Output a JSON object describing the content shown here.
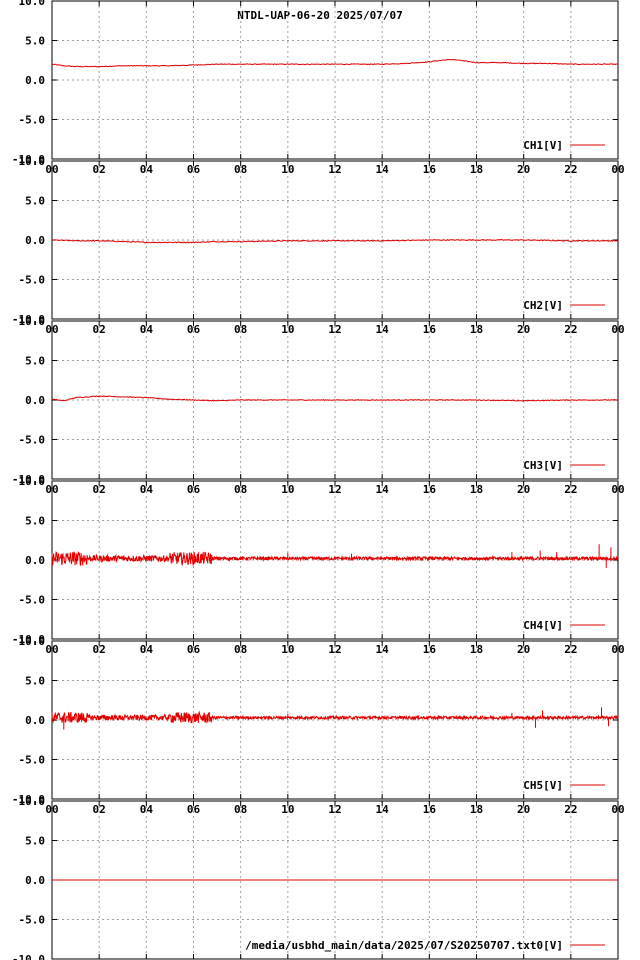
{
  "title": "NTDL-UAP-06-20 2025/07/07",
  "colors": {
    "series": "#e00000",
    "grid": "#a0a0a0",
    "axis": "#000000"
  },
  "chart_data": [
    {
      "type": "line",
      "title": "NTDL-UAP-06-20 2025/07/07",
      "x_ticks": [
        "00",
        "02",
        "04",
        "06",
        "08",
        "10",
        "12",
        "14",
        "16",
        "18",
        "20",
        "22",
        "00"
      ],
      "xlim": [
        0,
        24
      ],
      "y_ticks": [
        "10.0",
        "5.0",
        "0.0",
        "-5.0",
        "-10.0"
      ],
      "ylim": [
        -10,
        10
      ],
      "grid": true,
      "legend_placement": "bottom-right",
      "series": [
        {
          "name": "CH1[V]",
          "x": [
            0,
            0.5,
            1,
            2,
            3,
            4,
            5,
            6,
            7,
            8,
            9,
            10,
            11,
            12,
            13,
            14,
            15,
            16,
            16.5,
            17,
            17.5,
            18,
            19,
            20,
            21,
            22,
            23,
            24
          ],
          "y": [
            2.0,
            1.8,
            1.7,
            1.7,
            1.8,
            1.8,
            1.8,
            1.9,
            2.0,
            2.0,
            2.0,
            2.0,
            2.0,
            2.0,
            2.0,
            2.0,
            2.1,
            2.3,
            2.5,
            2.6,
            2.4,
            2.2,
            2.2,
            2.1,
            2.1,
            2.0,
            2.0,
            2.0
          ],
          "noise": 0.05
        }
      ]
    },
    {
      "type": "line",
      "x_ticks": [
        "00",
        "02",
        "04",
        "06",
        "08",
        "10",
        "12",
        "14",
        "16",
        "18",
        "20",
        "22",
        "00"
      ],
      "xlim": [
        0,
        24
      ],
      "y_ticks": [
        "10.0",
        "5.0",
        "0.0",
        "-5.0",
        "-10.0"
      ],
      "ylim": [
        -10,
        10
      ],
      "grid": true,
      "legend_placement": "bottom-right",
      "series": [
        {
          "name": "CH2[V]",
          "x": [
            0,
            1,
            2,
            3,
            4,
            5,
            6,
            7,
            8,
            10,
            12,
            14,
            16,
            18,
            20,
            22,
            24
          ],
          "y": [
            0.0,
            -0.1,
            -0.1,
            -0.2,
            -0.3,
            -0.3,
            -0.3,
            -0.2,
            -0.2,
            -0.1,
            -0.1,
            -0.1,
            0.0,
            0.0,
            0.0,
            -0.1,
            -0.1
          ],
          "noise": 0.06
        }
      ]
    },
    {
      "type": "line",
      "x_ticks": [
        "00",
        "02",
        "04",
        "06",
        "08",
        "10",
        "12",
        "14",
        "16",
        "18",
        "20",
        "22",
        "00"
      ],
      "xlim": [
        0,
        24
      ],
      "y_ticks": [
        "10.0",
        "5.0",
        "0.0",
        "-5.0",
        "-10.0"
      ],
      "ylim": [
        -10,
        10
      ],
      "grid": true,
      "legend_placement": "bottom-right",
      "series": [
        {
          "name": "CH3[V]",
          "x": [
            0,
            0.5,
            1,
            2,
            3,
            4,
            5,
            6,
            7,
            8,
            10,
            12,
            14,
            16,
            18,
            20,
            22,
            24
          ],
          "y": [
            0.1,
            -0.1,
            0.3,
            0.5,
            0.4,
            0.3,
            0.1,
            0.0,
            -0.1,
            0.0,
            0.0,
            0.0,
            0.0,
            0.0,
            0.0,
            -0.1,
            0.0,
            0.0
          ],
          "noise": 0.05
        }
      ]
    },
    {
      "type": "line",
      "x_ticks": [
        "00",
        "02",
        "04",
        "06",
        "08",
        "10",
        "12",
        "14",
        "16",
        "18",
        "20",
        "22",
        "00"
      ],
      "xlim": [
        0,
        24
      ],
      "y_ticks": [
        "10.0",
        "5.0",
        "0.0",
        "-5.0",
        "-10.0"
      ],
      "ylim": [
        -10,
        10
      ],
      "grid": true,
      "legend_placement": "bottom-right",
      "series": [
        {
          "name": "CH4[V]",
          "x": [
            0,
            24
          ],
          "y": [
            0.2,
            0.2
          ],
          "noise_bands": [
            {
              "from": 0,
              "to": 1.5,
              "amp": 0.9
            },
            {
              "from": 1.5,
              "to": 5,
              "amp": 0.4
            },
            {
              "from": 5,
              "to": 6.8,
              "amp": 0.8
            },
            {
              "from": 6.8,
              "to": 24,
              "amp": 0.2
            }
          ],
          "spikes": [
            {
              "x": 10.0,
              "y": 0.9
            },
            {
              "x": 12.7,
              "y": 0.8
            },
            {
              "x": 19.5,
              "y": 1.0
            },
            {
              "x": 20.7,
              "y": 1.2
            },
            {
              "x": 21.4,
              "y": 1.0
            },
            {
              "x": 23.2,
              "y": 2.0
            },
            {
              "x": 23.5,
              "y": -1.0
            },
            {
              "x": 23.7,
              "y": 1.6
            }
          ]
        }
      ]
    },
    {
      "type": "line",
      "x_ticks": [
        "00",
        "02",
        "04",
        "06",
        "08",
        "10",
        "12",
        "14",
        "16",
        "18",
        "20",
        "22",
        "00"
      ],
      "xlim": [
        0,
        24
      ],
      "y_ticks": [
        "10.0",
        "5.0",
        "0.0",
        "-5.0",
        "-10.0"
      ],
      "ylim": [
        -10,
        10
      ],
      "grid": true,
      "legend_placement": "bottom-right",
      "series": [
        {
          "name": "CH5[V]",
          "x": [
            0,
            24
          ],
          "y": [
            0.3,
            0.3
          ],
          "noise_bands": [
            {
              "from": 0,
              "to": 1.5,
              "amp": 0.7
            },
            {
              "from": 1.5,
              "to": 5,
              "amp": 0.35
            },
            {
              "from": 5,
              "to": 6.8,
              "amp": 0.7
            },
            {
              "from": 6.8,
              "to": 24,
              "amp": 0.18
            }
          ],
          "spikes": [
            {
              "x": 0.5,
              "y": -1.2
            },
            {
              "x": 10.0,
              "y": 0.8
            },
            {
              "x": 19.5,
              "y": 0.9
            },
            {
              "x": 20.5,
              "y": -1.0
            },
            {
              "x": 20.8,
              "y": 1.2
            },
            {
              "x": 23.3,
              "y": 1.6
            },
            {
              "x": 23.6,
              "y": -0.8
            }
          ]
        }
      ]
    },
    {
      "type": "line",
      "x_ticks": [],
      "xlim": [
        0,
        24
      ],
      "y_ticks": [
        "10.0",
        "5.0",
        "0.0",
        "-5.0",
        "-10.0"
      ],
      "ylim": [
        -10,
        10
      ],
      "grid": true,
      "legend_placement": "bottom-right",
      "series": [
        {
          "name": "/media/usbhd_main/data/2025/07/S20250707.txt0[V]",
          "x": [
            0,
            24
          ],
          "y": [
            0.0,
            0.0
          ],
          "noise": 0.0
        }
      ]
    }
  ]
}
